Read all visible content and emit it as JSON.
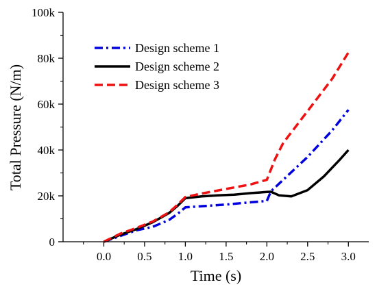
{
  "chart_data": {
    "type": "line",
    "title": "",
    "xlabel": "Time (s)",
    "ylabel": "Total Pressure (N/m)",
    "xlim": [
      -0.5,
      3.25
    ],
    "ylim": [
      0,
      100000
    ],
    "x_ticks": [
      0.0,
      0.5,
      1.0,
      1.5,
      2.0,
      2.5,
      3.0
    ],
    "x_tick_labels": [
      "0.0",
      "0.5",
      "1.0",
      "1.5",
      "2.0",
      "2.5",
      "3.0"
    ],
    "y_ticks": [
      0,
      20000,
      40000,
      60000,
      80000,
      100000
    ],
    "y_tick_labels": [
      "0",
      "20k",
      "40k",
      "60k",
      "80k",
      "100k"
    ],
    "grid": false,
    "legend_position": "top-left",
    "series": [
      {
        "name": "Design scheme 1",
        "color": "#0000dd",
        "dash": "dash-dot",
        "x": [
          0.0,
          0.2,
          0.4,
          0.6,
          0.8,
          0.9,
          1.0,
          1.2,
          1.5,
          1.8,
          2.0,
          2.05,
          2.2,
          2.5,
          2.8,
          3.0
        ],
        "y": [
          0,
          2500,
          5000,
          6500,
          9500,
          12000,
          15000,
          15500,
          16200,
          17200,
          17800,
          22000,
          27000,
          37000,
          48500,
          57500
        ]
      },
      {
        "name": "Design scheme 2",
        "color": "#000000",
        "dash": "solid",
        "x": [
          0.0,
          0.2,
          0.4,
          0.6,
          0.8,
          0.9,
          1.0,
          1.2,
          1.4,
          1.6,
          1.8,
          2.0,
          2.05,
          2.15,
          2.3,
          2.5,
          2.7,
          2.9,
          3.0
        ],
        "y": [
          0,
          3000,
          5500,
          8500,
          12500,
          15500,
          19000,
          19800,
          20200,
          20500,
          21200,
          21700,
          21800,
          20200,
          19800,
          22500,
          28500,
          36000,
          40000
        ]
      },
      {
        "name": "Design scheme 3",
        "color": "#ee1111",
        "dash": "dashed",
        "x": [
          0.0,
          0.2,
          0.4,
          0.6,
          0.8,
          0.9,
          1.0,
          1.2,
          1.5,
          1.8,
          2.0,
          2.1,
          2.2,
          2.5,
          2.8,
          3.0
        ],
        "y": [
          0,
          3500,
          6000,
          8800,
          12800,
          16000,
          19500,
          21000,
          23000,
          25000,
          27000,
          36000,
          43000,
          57000,
          71000,
          82500
        ]
      }
    ]
  }
}
